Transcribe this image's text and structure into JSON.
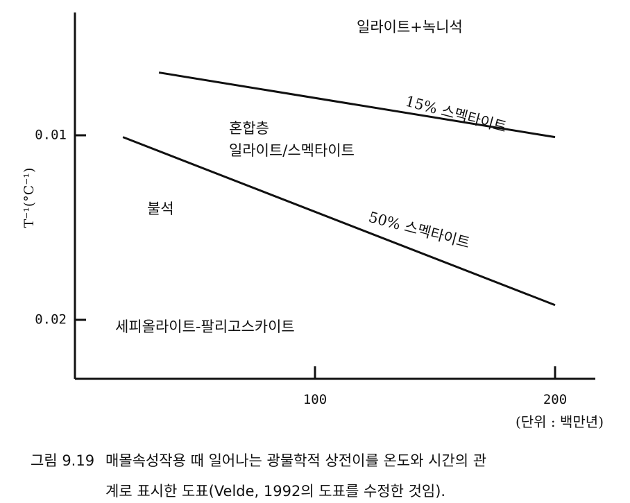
{
  "chart_data": {
    "type": "line",
    "xlabel": "(단위 : 백만년)",
    "ylabel": "T⁻¹(°C⁻¹)",
    "x_ticks": [
      "100",
      "200"
    ],
    "y_ticks": [
      "0.01",
      "0.02"
    ],
    "series": [
      {
        "name": "15% 스멕타이트",
        "points": [
          [
            35,
            0.0066
          ],
          [
            200,
            0.0101
          ]
        ]
      },
      {
        "name": "50% 스멕타이트",
        "points": [
          [
            20,
            0.0101
          ],
          [
            200,
            0.0192
          ]
        ]
      }
    ],
    "regions": [
      "일라이트+녹니석",
      "혼합층",
      "일라이트/스멕타이트",
      "불석",
      "세피올라이트-팔리고스카이트"
    ]
  },
  "caption": {
    "number": "그림 9.19",
    "line1": "매몰속성작용 때 일어나는 광물학적 상전이를 온도와 시간의 관",
    "line2": "계로 표시한 도표(Velde, 1992의 도표를 수정한 것임)."
  }
}
